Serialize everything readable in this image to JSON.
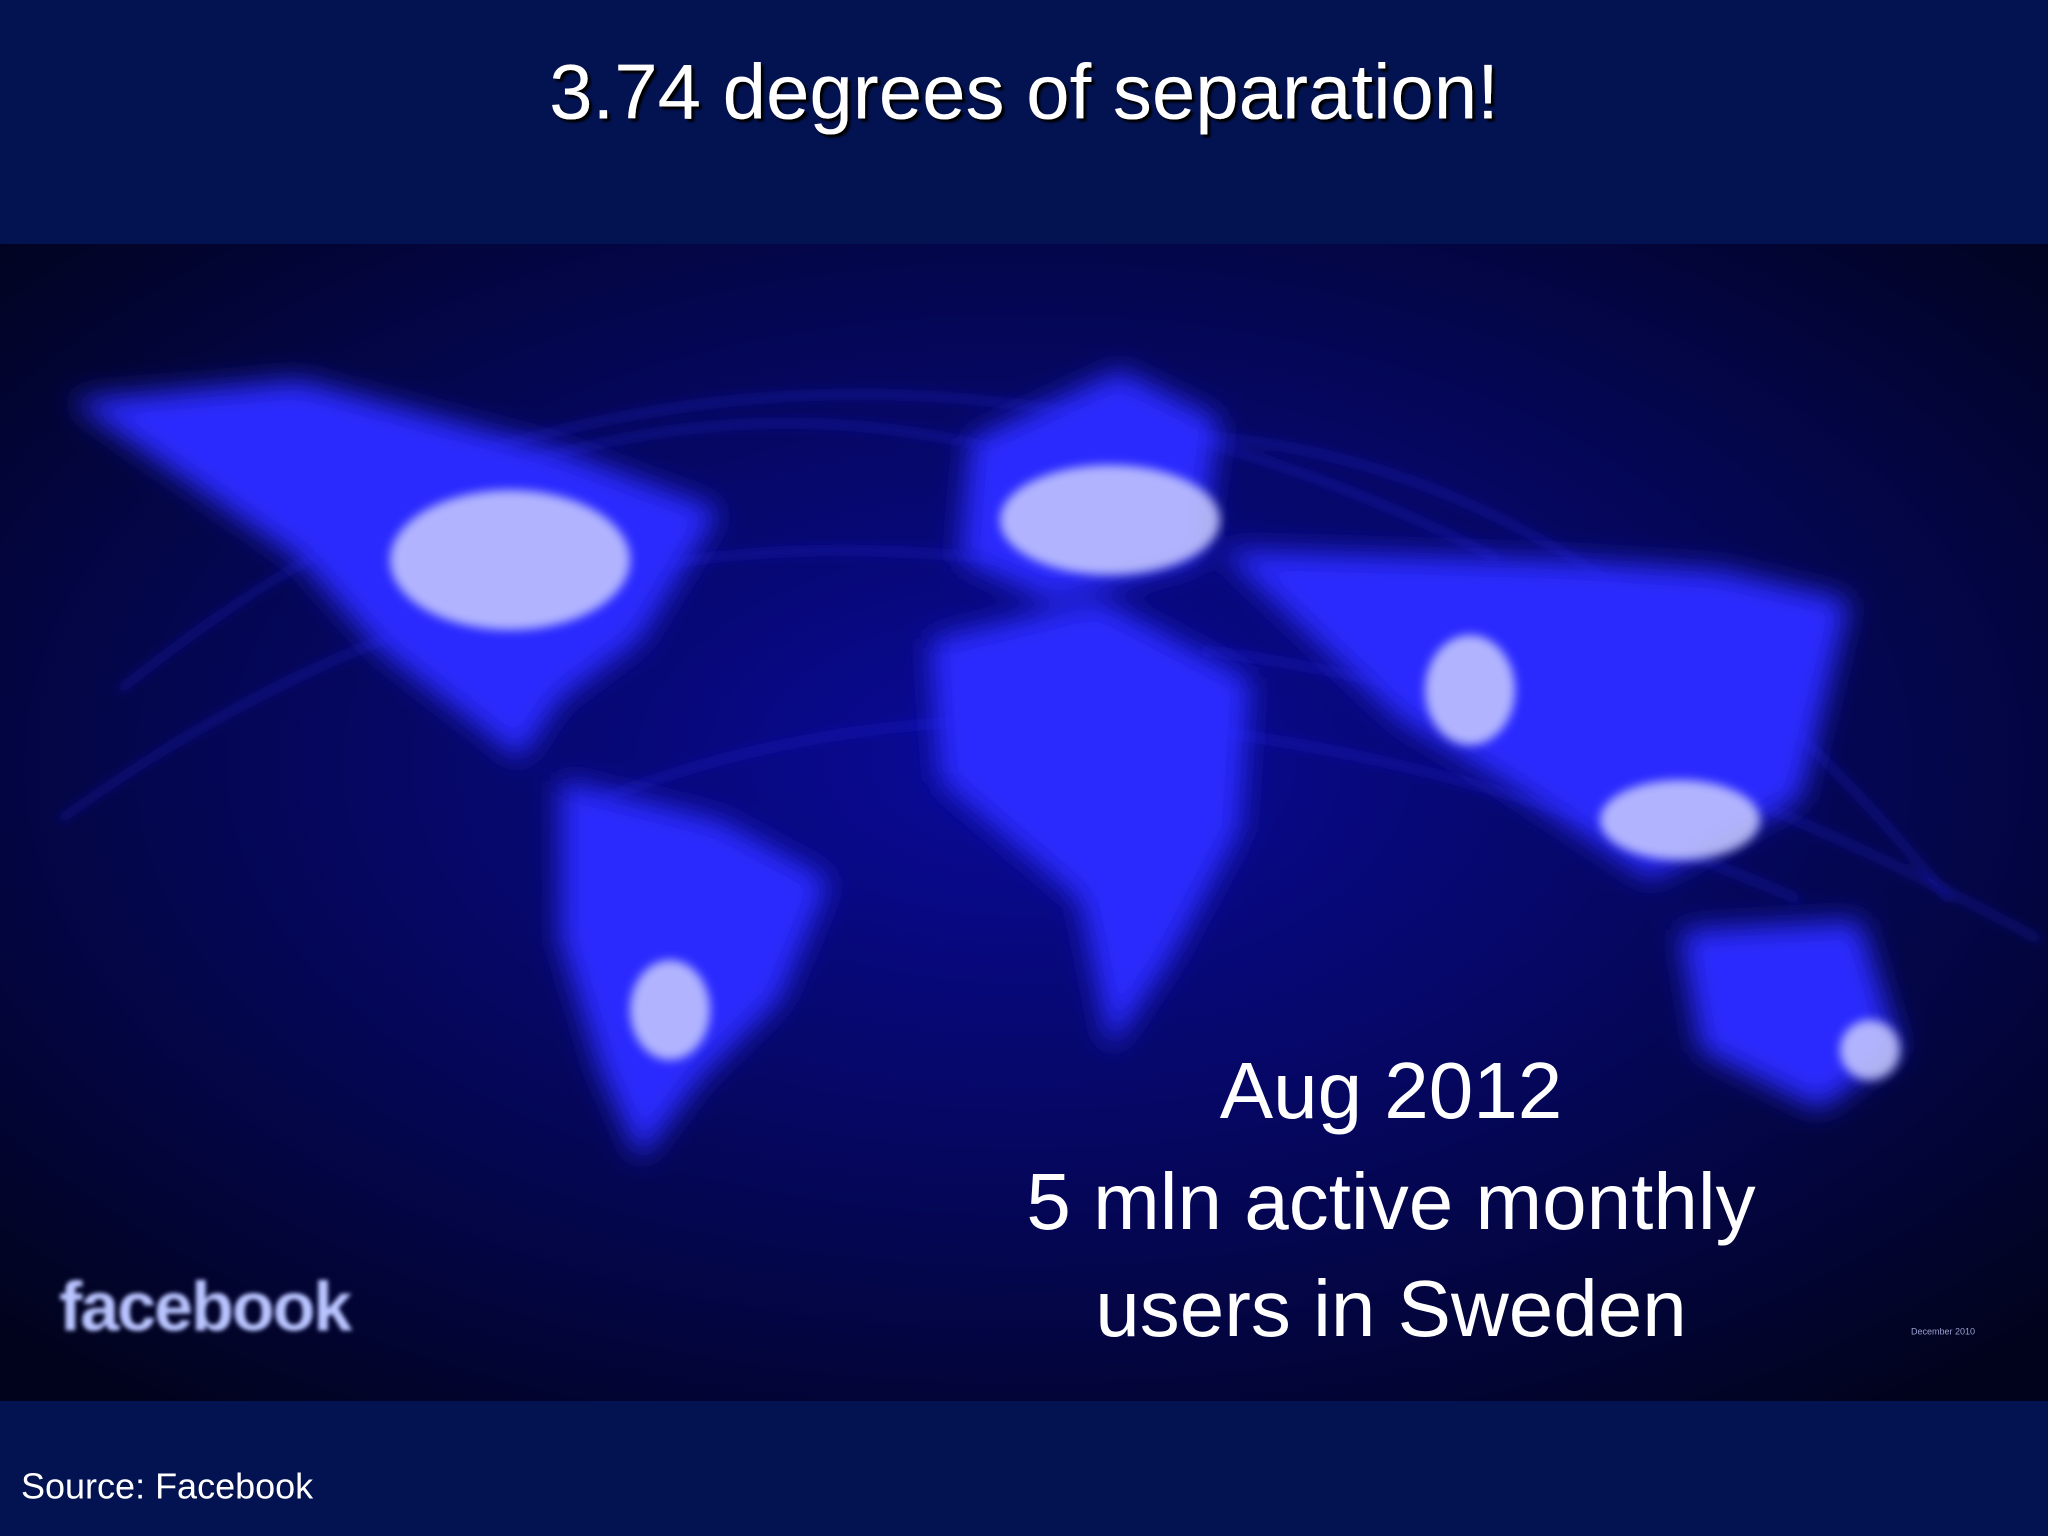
{
  "slide": {
    "title": "3.74 degrees of separation!",
    "image": {
      "logo": "facebook",
      "stamp": "December 2010"
    },
    "caption": [
      "Aug 2012",
      "5 mln active monthly",
      "users in Sweden"
    ],
    "source": "Source: Facebook"
  }
}
